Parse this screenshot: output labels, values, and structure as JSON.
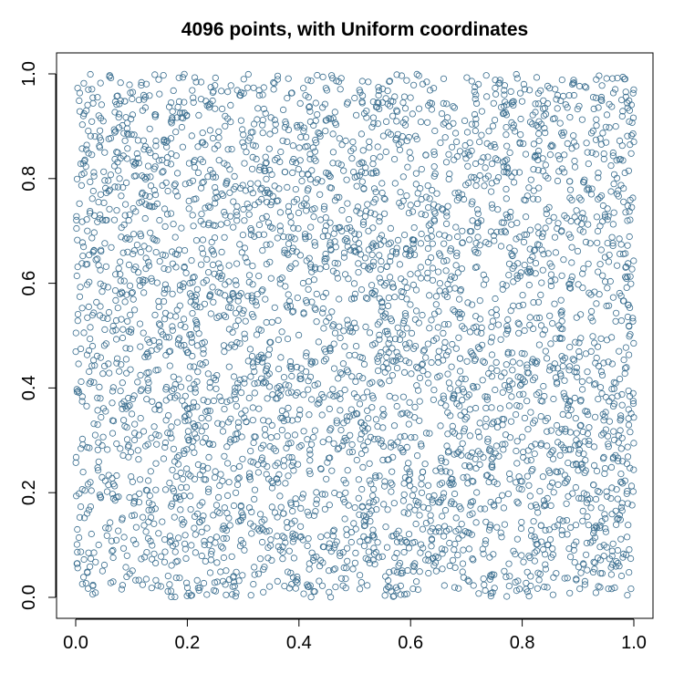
{
  "chart_data": {
    "type": "scatter",
    "title": "4096 points, with  Uniform  coordinates",
    "xlabel": "",
    "ylabel": "",
    "xlim": [
      0.0,
      1.0
    ],
    "ylim": [
      0.0,
      1.0
    ],
    "x_ticks": [
      0.0,
      0.2,
      0.4,
      0.6,
      0.8,
      1.0
    ],
    "y_ticks": [
      0.0,
      0.2,
      0.4,
      0.6,
      0.8,
      1.0
    ],
    "x_tick_labels": [
      "0.0",
      "0.2",
      "0.4",
      "0.6",
      "0.8",
      "1.0"
    ],
    "y_tick_labels": [
      "0.0",
      "0.2",
      "0.4",
      "0.6",
      "0.8",
      "1.0"
    ],
    "grid": false,
    "legend": "none",
    "marker": "open-circle",
    "point_color": "#3a6e8f",
    "n_points": 4096,
    "distribution": "uniform",
    "series": [
      {
        "x": [
          0.012,
          0.027,
          0.041,
          0.056,
          0.071,
          0.085,
          0.098,
          0.113,
          0.126,
          0.142,
          0.155,
          0.171,
          0.184,
          0.199,
          0.213,
          0.228,
          0.241,
          0.257,
          0.271,
          0.284,
          0.299,
          0.313,
          0.328,
          0.342,
          0.356,
          0.371,
          0.385,
          0.398,
          0.414,
          0.427,
          0.442,
          0.456,
          0.471,
          0.484,
          0.499,
          0.513,
          0.528,
          0.541,
          0.556,
          0.571,
          0.584,
          0.599,
          0.613,
          0.627,
          0.642,
          0.656,
          0.671,
          0.684,
          0.698,
          0.713,
          0.727,
          0.742,
          0.756,
          0.771,
          0.784,
          0.799,
          0.813,
          0.828,
          0.842,
          0.856,
          0.871,
          0.884,
          0.899,
          0.913,
          0.927,
          0.942,
          0.956,
          0.971,
          0.984,
          0.993,
          0.024,
          0.088,
          0.153,
          0.219,
          0.287,
          0.352,
          0.418,
          0.483,
          0.547,
          0.612,
          0.679,
          0.744,
          0.808,
          0.873,
          0.938,
          0.061,
          0.137,
          0.266,
          0.391,
          0.525,
          0.658,
          0.781,
          0.912,
          0.175,
          0.338,
          0.462,
          0.597,
          0.721,
          0.852,
          0.978
        ],
        "y": [
          0.903,
          0.412,
          0.755,
          0.118,
          0.586,
          0.271,
          0.964,
          0.033,
          0.648,
          0.359,
          0.812,
          0.174,
          0.492,
          0.921,
          0.226,
          0.683,
          0.047,
          0.537,
          0.795,
          0.301,
          0.869,
          0.141,
          0.614,
          0.437,
          0.982,
          0.086,
          0.728,
          0.254,
          0.563,
          0.838,
          0.197,
          0.471,
          0.706,
          0.018,
          0.389,
          0.947,
          0.632,
          0.105,
          0.851,
          0.328,
          0.574,
          0.213,
          0.772,
          0.458,
          0.061,
          0.924,
          0.347,
          0.689,
          0.126,
          0.515,
          0.883,
          0.284,
          0.741,
          0.039,
          0.603,
          0.408,
          0.969,
          0.162,
          0.826,
          0.379,
          0.547,
          0.093,
          0.718,
          0.262,
          0.891,
          0.431,
          0.654,
          0.188,
          0.811,
          0.247,
          0.654,
          0.327,
          0.078,
          0.861,
          0.543,
          0.209,
          0.936,
          0.617,
          0.294,
          0.752,
          0.019,
          0.488,
          0.693,
          0.146,
          0.579,
          0.997,
          0.374,
          0.829,
          0.112,
          0.664,
          0.453,
          0.907,
          0.238,
          0.713,
          0.058,
          0.521,
          0.879,
          0.316,
          0.595,
          0.041
        ]
      }
    ]
  }
}
